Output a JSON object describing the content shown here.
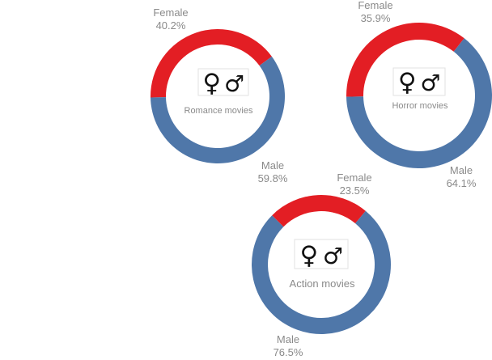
{
  "chart_data": [
    {
      "type": "pie",
      "title": "",
      "caption": "Romance movies",
      "icons": [
        "female-symbol-icon",
        "male-symbol-icon"
      ],
      "slices": [
        {
          "label": "Female",
          "value": 40.2,
          "value_text": "40.2%",
          "color": "#e31e24"
        },
        {
          "label": "Male",
          "value": 59.8,
          "value_text": "59.8%",
          "color": "#4f77a9"
        }
      ]
    },
    {
      "type": "pie",
      "title": "",
      "caption": "Horror movies",
      "icons": [
        "female-symbol-icon",
        "male-symbol-icon"
      ],
      "slices": [
        {
          "label": "Female",
          "value": 35.9,
          "value_text": "35.9%",
          "color": "#e31e24"
        },
        {
          "label": "Male",
          "value": 64.1,
          "value_text": "64.1%",
          "color": "#4f77a9"
        }
      ]
    },
    {
      "type": "pie",
      "title": "",
      "caption": "Action movies",
      "icons": [
        "female-symbol-icon",
        "male-symbol-icon"
      ],
      "slices": [
        {
          "label": "Female",
          "value": 23.5,
          "value_text": "23.5%",
          "color": "#e31e24"
        },
        {
          "label": "Male",
          "value": 76.5,
          "value_text": "76.5%",
          "color": "#4f77a9"
        }
      ]
    }
  ]
}
